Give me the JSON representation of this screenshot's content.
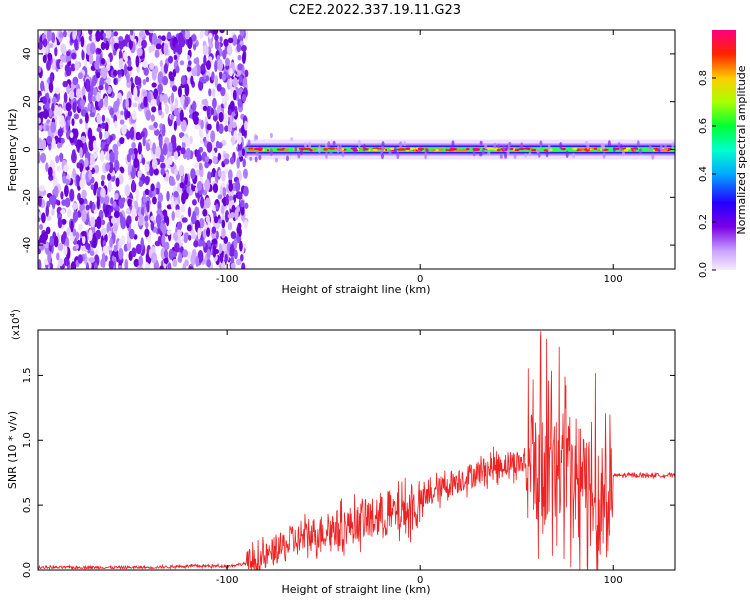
{
  "title": "C2E2.2022.337.19.11.G23",
  "chart_data": [
    {
      "type": "heatmap",
      "xlabel": "Height of straight line (km)",
      "ylabel": "Frequency (Hz)",
      "xlim": [
        -198,
        132
      ],
      "ylim": [
        -50,
        50
      ],
      "xticks": [
        -100,
        0,
        100
      ],
      "xtick_labels": [
        "-100",
        "0",
        "100"
      ],
      "yticks": [
        -40,
        -20,
        0,
        20,
        40
      ],
      "ytick_labels": [
        "-40",
        "-20",
        "0",
        "20",
        "40"
      ],
      "colorbar": {
        "label": "Normalized spectral amplitude",
        "range": [
          0,
          1
        ],
        "ticks": [
          0,
          0.2,
          0.4,
          0.6,
          0.8
        ],
        "tick_labels": [
          "0.0",
          "0.2",
          "0.4",
          "0.6",
          "0.8"
        ],
        "colormap": "rainbow",
        "colors": [
          "#f0e0ff",
          "#7a00e6",
          "#0000ff",
          "#00ccff",
          "#00ff66",
          "#aaff00",
          "#ffcc00",
          "#ff2200",
          "#ff0080"
        ]
      },
      "regions": {
        "noise_band_x": [
          -198,
          -90
        ],
        "signal_band_x": [
          -90,
          132
        ],
        "signal_center_hz": 0
      }
    },
    {
      "type": "line",
      "xlabel": "Height of straight line (km)",
      "ylabel": "SNR (10 * v/v)",
      "y_scale_label": "(x10",
      "y_scale_exp": "4",
      "y_scale_close": ")",
      "xlim": [
        -198,
        132
      ],
      "ylim": [
        0,
        1.85
      ],
      "xticks": [
        -100,
        0,
        100
      ],
      "xtick_labels": [
        "-100",
        "0",
        "100"
      ],
      "yticks": [
        0,
        0.5,
        1.0,
        1.5
      ],
      "ytick_labels": [
        "0.0",
        "0.5",
        "1.0",
        "1.5"
      ],
      "color": "#ee2222",
      "series": [
        {
          "x": [
            -198,
            -180,
            -160,
            -140,
            -120,
            -100,
            -90,
            -82,
            -75,
            -65,
            -55,
            -45,
            -35,
            -25,
            -15,
            -8,
            -2,
            5,
            15,
            25,
            35,
            45,
            55,
            60,
            70,
            80,
            88,
            92,
            96,
            100,
            110,
            120,
            132
          ],
          "y": [
            0.02,
            0.02,
            0.02,
            0.02,
            0.03,
            0.03,
            0.05,
            0.08,
            0.15,
            0.22,
            0.28,
            0.32,
            0.35,
            0.4,
            0.42,
            0.45,
            0.48,
            0.58,
            0.66,
            0.72,
            0.78,
            0.82,
            0.83,
            0.8,
            0.75,
            0.68,
            0.6,
            0.55,
            0.5,
            0.73,
            0.73,
            0.73,
            0.73
          ]
        }
      ]
    }
  ]
}
